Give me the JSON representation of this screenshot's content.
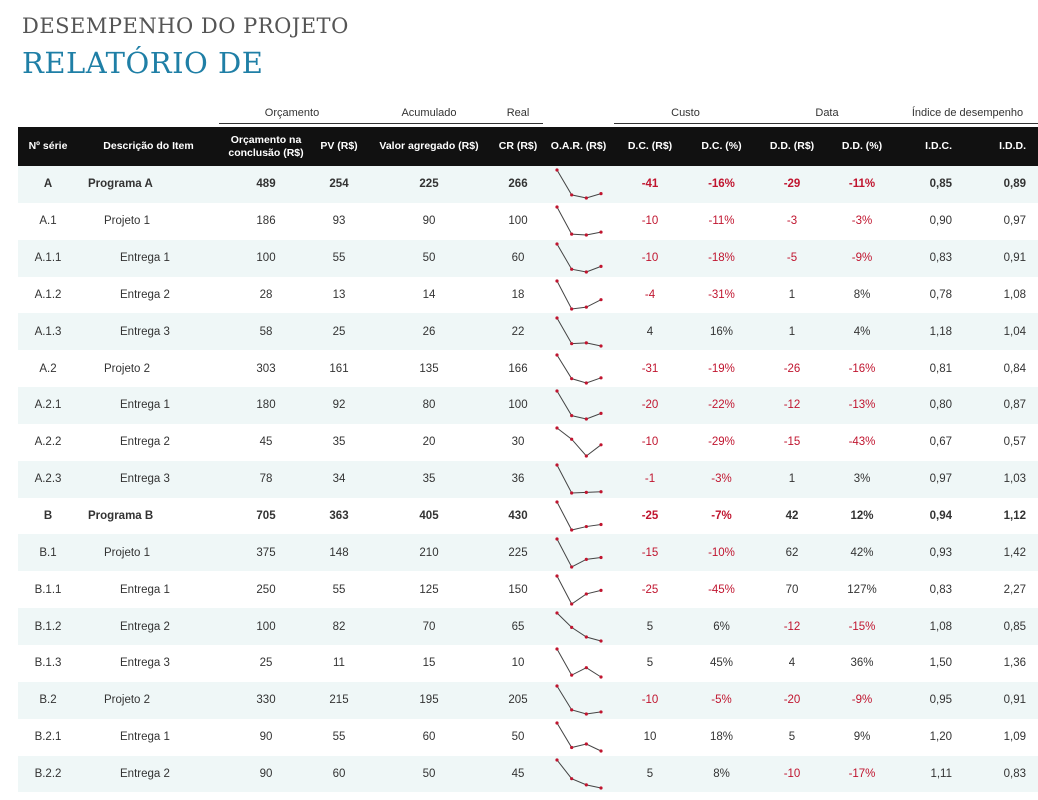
{
  "title": {
    "line1": "DESEMPENHO DO PROJETO",
    "line2": "RELATÓRIO DE"
  },
  "groups": {
    "orcamento": "Orçamento",
    "acumulado": "Acumulado",
    "real": "Real",
    "custo": "Custo",
    "data": "Data",
    "indice": "Índice de desempenho"
  },
  "headers": {
    "serie": "Nº série",
    "desc": "Descrição do Item",
    "oc_line1": "Orçamento na",
    "oc_line2": "conclusão (R$)",
    "pv": "PV (R$)",
    "va": "Valor agregado (R$)",
    "cr": "CR (R$)",
    "oar": "O.A.R. (R$)",
    "dc": "D.C. (R$)",
    "dcp": "D.C. (%)",
    "dd": "D.D. (R$)",
    "ddp": "D.D. (%)",
    "idc": "I.D.C.",
    "idd": "I.D.D."
  },
  "colors": {
    "accent": "#1f7fa6",
    "header_bg": "#111111",
    "row_alt": "#eff7f7",
    "negative": "#c0152f",
    "spark_point": "#c0152f",
    "spark_line": "#444444"
  },
  "rows": [
    {
      "serie": "A",
      "desc": "Programa A",
      "level": 0,
      "bold": true,
      "alt": true,
      "oc": "489",
      "pv": "254",
      "va": "225",
      "cr": "266",
      "spark": [
        489,
        254,
        225,
        266
      ],
      "dc": "-41",
      "dcp": "-16%",
      "dd": "-29",
      "ddp": "-11%",
      "idc": "0,85",
      "idd": "0,89"
    },
    {
      "serie": "A.1",
      "desc": "Projeto 1",
      "level": 1,
      "bold": false,
      "alt": false,
      "oc": "186",
      "pv": "93",
      "va": "90",
      "cr": "100",
      "spark": [
        186,
        93,
        90,
        100
      ],
      "dc": "-10",
      "dcp": "-11%",
      "dd": "-3",
      "ddp": "-3%",
      "idc": "0,90",
      "idd": "0,97"
    },
    {
      "serie": "A.1.1",
      "desc": "Entrega 1",
      "level": 2,
      "bold": false,
      "alt": true,
      "oc": "100",
      "pv": "55",
      "va": "50",
      "cr": "60",
      "spark": [
        100,
        55,
        50,
        60
      ],
      "dc": "-10",
      "dcp": "-18%",
      "dd": "-5",
      "ddp": "-9%",
      "idc": "0,83",
      "idd": "0,91"
    },
    {
      "serie": "A.1.2",
      "desc": "Entrega 2",
      "level": 2,
      "bold": false,
      "alt": false,
      "oc": "28",
      "pv": "13",
      "va": "14",
      "cr": "18",
      "spark": [
        28,
        13,
        14,
        18
      ],
      "dc": "-4",
      "dcp": "-31%",
      "dd": "1",
      "ddp": "8%",
      "idc": "0,78",
      "idd": "1,08"
    },
    {
      "serie": "A.1.3",
      "desc": "Entrega 3",
      "level": 2,
      "bold": false,
      "alt": true,
      "oc": "58",
      "pv": "25",
      "va": "26",
      "cr": "22",
      "spark": [
        58,
        25,
        26,
        22
      ],
      "dc": "4",
      "dcp": "16%",
      "dd": "1",
      "ddp": "4%",
      "idc": "1,18",
      "idd": "1,04"
    },
    {
      "serie": "A.2",
      "desc": "Projeto 2",
      "level": 1,
      "bold": false,
      "alt": false,
      "oc": "303",
      "pv": "161",
      "va": "135",
      "cr": "166",
      "spark": [
        303,
        161,
        135,
        166
      ],
      "dc": "-31",
      "dcp": "-19%",
      "dd": "-26",
      "ddp": "-16%",
      "idc": "0,81",
      "idd": "0,84"
    },
    {
      "serie": "A.2.1",
      "desc": "Entrega 1",
      "level": 2,
      "bold": false,
      "alt": true,
      "oc": "180",
      "pv": "92",
      "va": "80",
      "cr": "100",
      "spark": [
        180,
        92,
        80,
        100
      ],
      "dc": "-20",
      "dcp": "-22%",
      "dd": "-12",
      "ddp": "-13%",
      "idc": "0,80",
      "idd": "0,87"
    },
    {
      "serie": "A.2.2",
      "desc": "Entrega 2",
      "level": 2,
      "bold": false,
      "alt": false,
      "oc": "45",
      "pv": "35",
      "va": "20",
      "cr": "30",
      "spark": [
        45,
        35,
        20,
        30
      ],
      "dc": "-10",
      "dcp": "-29%",
      "dd": "-15",
      "ddp": "-43%",
      "idc": "0,67",
      "idd": "0,57"
    },
    {
      "serie": "A.2.3",
      "desc": "Entrega 3",
      "level": 2,
      "bold": false,
      "alt": true,
      "oc": "78",
      "pv": "34",
      "va": "35",
      "cr": "36",
      "spark": [
        78,
        34,
        35,
        36
      ],
      "dc": "-1",
      "dcp": "-3%",
      "dd": "1",
      "ddp": "3%",
      "idc": "0,97",
      "idd": "1,03"
    },
    {
      "serie": "B",
      "desc": "Programa B",
      "level": 0,
      "bold": true,
      "alt": false,
      "oc": "705",
      "pv": "363",
      "va": "405",
      "cr": "430",
      "spark": [
        705,
        363,
        405,
        430
      ],
      "dc": "-25",
      "dcp": "-7%",
      "dd": "42",
      "ddp": "12%",
      "idc": "0,94",
      "idd": "1,12"
    },
    {
      "serie": "B.1",
      "desc": "Projeto 1",
      "level": 1,
      "bold": false,
      "alt": true,
      "oc": "375",
      "pv": "148",
      "va": "210",
      "cr": "225",
      "spark": [
        375,
        148,
        210,
        225
      ],
      "dc": "-15",
      "dcp": "-10%",
      "dd": "62",
      "ddp": "42%",
      "idc": "0,93",
      "idd": "1,42"
    },
    {
      "serie": "B.1.1",
      "desc": "Entrega 1",
      "level": 2,
      "bold": false,
      "alt": false,
      "oc": "250",
      "pv": "55",
      "va": "125",
      "cr": "150",
      "spark": [
        250,
        55,
        125,
        150
      ],
      "dc": "-25",
      "dcp": "-45%",
      "dd": "70",
      "ddp": "127%",
      "idc": "0,83",
      "idd": "2,27"
    },
    {
      "serie": "B.1.2",
      "desc": "Entrega 2",
      "level": 2,
      "bold": false,
      "alt": true,
      "oc": "100",
      "pv": "82",
      "va": "70",
      "cr": "65",
      "spark": [
        100,
        82,
        70,
        65
      ],
      "dc": "5",
      "dcp": "6%",
      "dd": "-12",
      "ddp": "-15%",
      "idc": "1,08",
      "idd": "0,85"
    },
    {
      "serie": "B.1.3",
      "desc": "Entrega 3",
      "level": 2,
      "bold": false,
      "alt": false,
      "oc": "25",
      "pv": "11",
      "va": "15",
      "cr": "10",
      "spark": [
        25,
        11,
        15,
        10
      ],
      "dc": "5",
      "dcp": "45%",
      "dd": "4",
      "ddp": "36%",
      "idc": "1,50",
      "idd": "1,36"
    },
    {
      "serie": "B.2",
      "desc": "Projeto 2",
      "level": 1,
      "bold": false,
      "alt": true,
      "oc": "330",
      "pv": "215",
      "va": "195",
      "cr": "205",
      "spark": [
        330,
        215,
        195,
        205
      ],
      "dc": "-10",
      "dcp": "-5%",
      "dd": "-20",
      "ddp": "-9%",
      "idc": "0,95",
      "idd": "0,91"
    },
    {
      "serie": "B.2.1",
      "desc": "Entrega 1",
      "level": 2,
      "bold": false,
      "alt": false,
      "oc": "90",
      "pv": "55",
      "va": "60",
      "cr": "50",
      "spark": [
        90,
        55,
        60,
        50
      ],
      "dc": "10",
      "dcp": "18%",
      "dd": "5",
      "ddp": "9%",
      "idc": "1,20",
      "idd": "1,09"
    },
    {
      "serie": "B.2.2",
      "desc": "Entrega 2",
      "level": 2,
      "bold": false,
      "alt": true,
      "oc": "90",
      "pv": "60",
      "va": "50",
      "cr": "45",
      "spark": [
        90,
        60,
        50,
        45
      ],
      "dc": "5",
      "dcp": "8%",
      "dd": "-10",
      "ddp": "-17%",
      "idc": "1,11",
      "idd": "0,83"
    }
  ]
}
